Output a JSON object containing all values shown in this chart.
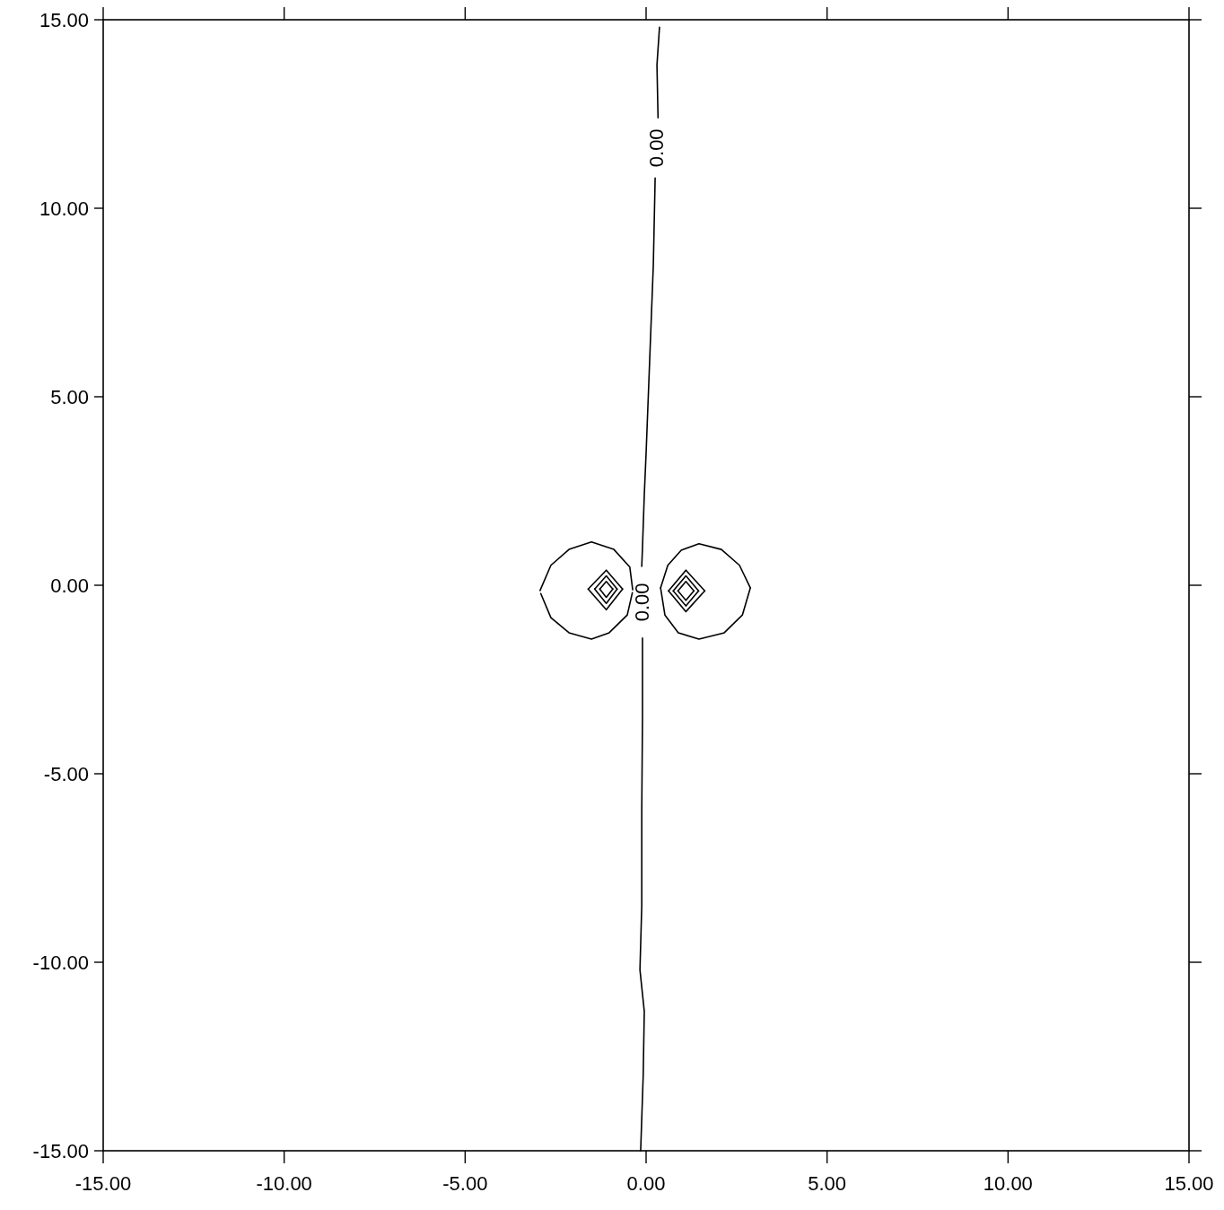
{
  "chart_data": {
    "type": "line",
    "xlim": [
      -15,
      15
    ],
    "ylim": [
      -15,
      15
    ],
    "xticks": [
      {
        "value": -15,
        "label": "-15.00"
      },
      {
        "value": -10,
        "label": "-10.00"
      },
      {
        "value": -5,
        "label": "-5.00"
      },
      {
        "value": 0,
        "label": "0.00"
      },
      {
        "value": 5,
        "label": "5.00"
      },
      {
        "value": 10,
        "label": "10.00"
      },
      {
        "value": 15,
        "label": "15.00"
      }
    ],
    "yticks": [
      {
        "value": -15,
        "label": "-15.00"
      },
      {
        "value": -10,
        "label": "-10.00"
      },
      {
        "value": -5,
        "label": "-5.00"
      },
      {
        "value": 0,
        "label": "0.00"
      },
      {
        "value": 5,
        "label": "5.00"
      },
      {
        "value": 10,
        "label": "10.00"
      },
      {
        "value": 15,
        "label": "15.00"
      }
    ],
    "series": [
      {
        "color": "#000000",
        "x": [
          0.37,
          0.3,
          0.33
        ],
        "values": [
          14.8,
          13.8,
          12.4
        ]
      },
      {
        "color": "#000000",
        "x": [
          0.25,
          0.2,
          0.1,
          0.0,
          -0.05,
          -0.1,
          -0.12
        ],
        "values": [
          10.8,
          8.5,
          6,
          3.5,
          2.4,
          1.0,
          0.5
        ]
      },
      {
        "color": "#000000",
        "x": [
          -0.1,
          -0.1,
          -0.12,
          -0.12,
          -0.17,
          -0.05,
          -0.08,
          -0.15
        ],
        "values": [
          -1.4,
          -3.5,
          -6,
          -8.5,
          -10.2,
          -11.3,
          -13,
          -15
        ]
      },
      {
        "color": "#000000",
        "x": [
          -2.93,
          -2.63,
          -2.13,
          -1.51,
          -0.89,
          -0.45,
          -0.37
        ],
        "values": [
          -0.14,
          0.53,
          0.95,
          1.15,
          0.95,
          0.48,
          -0.12
        ]
      },
      {
        "color": "#000000",
        "x": [
          -2.91,
          -2.63,
          -2.13,
          -1.51,
          -1.02,
          -0.52,
          -0.38
        ],
        "values": [
          -0.22,
          -0.86,
          -1.26,
          -1.43,
          -1.26,
          -0.79,
          -0.2
        ]
      },
      {
        "color": "#000000",
        "x": [
          -1.6,
          -1.1,
          -0.65
        ],
        "values": [
          -0.1,
          0.4,
          -0.1
        ]
      },
      {
        "color": "#000000",
        "x": [
          -1.6,
          -1.1,
          -0.65
        ],
        "values": [
          -0.1,
          -0.65,
          -0.1
        ]
      },
      {
        "color": "#000000",
        "x": [
          -1.42,
          -1.1,
          -0.8
        ],
        "values": [
          -0.1,
          0.25,
          -0.1
        ]
      },
      {
        "color": "#000000",
        "x": [
          -1.42,
          -1.1,
          -0.8
        ],
        "values": [
          -0.1,
          -0.48,
          -0.1
        ]
      },
      {
        "color": "#000000",
        "x": [
          -1.28,
          -1.1,
          -0.92
        ],
        "values": [
          -0.1,
          0.1,
          -0.1
        ]
      },
      {
        "color": "#000000",
        "x": [
          -1.28,
          -1.1,
          -0.92
        ],
        "values": [
          -0.1,
          -0.32,
          -0.1
        ]
      },
      {
        "color": "#000000",
        "x": [
          0.4,
          0.6,
          0.97,
          1.46,
          2.08,
          2.58,
          2.88
        ],
        "values": [
          -0.07,
          0.53,
          0.93,
          1.1,
          0.95,
          0.53,
          -0.07
        ]
      },
      {
        "color": "#000000",
        "x": [
          0.4,
          0.52,
          0.89,
          1.46,
          2.16,
          2.66,
          2.88
        ],
        "values": [
          -0.07,
          -0.79,
          -1.26,
          -1.43,
          -1.26,
          -0.79,
          -0.07
        ]
      },
      {
        "color": "#000000",
        "x": [
          0.62,
          1.1,
          1.62
        ],
        "values": [
          -0.15,
          0.4,
          -0.15
        ]
      },
      {
        "color": "#000000",
        "x": [
          0.62,
          1.1,
          1.62
        ],
        "values": [
          -0.15,
          -0.7,
          -0.15
        ]
      },
      {
        "color": "#000000",
        "x": [
          0.75,
          1.1,
          1.45
        ],
        "values": [
          -0.15,
          0.25,
          -0.15
        ]
      },
      {
        "color": "#000000",
        "x": [
          0.75,
          1.1,
          1.45
        ],
        "values": [
          -0.15,
          -0.55,
          -0.15
        ]
      },
      {
        "color": "#000000",
        "x": [
          0.88,
          1.1,
          1.32
        ],
        "values": [
          -0.15,
          0.1,
          -0.15
        ]
      },
      {
        "color": "#000000",
        "x": [
          0.88,
          1.1,
          1.32
        ],
        "values": [
          -0.15,
          -0.4,
          -0.15
        ]
      }
    ],
    "annotations": [
      "0.00",
      "0.00"
    ]
  }
}
